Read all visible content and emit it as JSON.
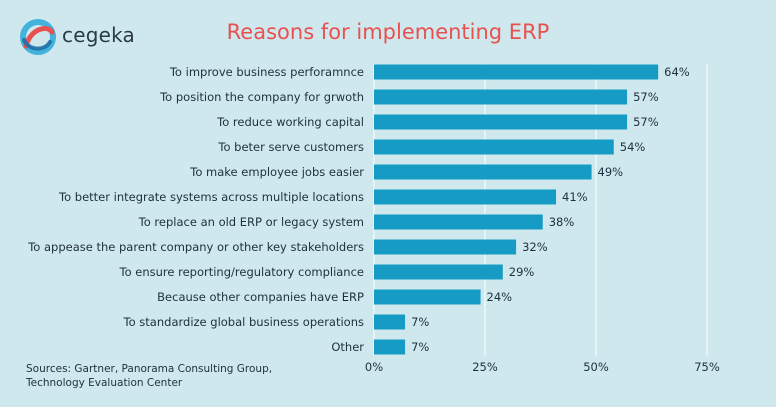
{
  "brand": {
    "name": "cegeka"
  },
  "colors": {
    "bar": "#169bc4",
    "grid": "#ffffff",
    "title": "#e8514f",
    "text": "#1f2f3d",
    "background": "#cfe8ee"
  },
  "sources": {
    "line1": "Sources: Gartner, Panorama Consulting Group,",
    "line2": "Technology Evaluation Center"
  },
  "chart_data": {
    "type": "bar",
    "orientation": "horizontal",
    "title": "Reasons for implementing ERP",
    "categories": [
      "To improve business perforamnce",
      "To position the company for grwoth",
      "To reduce working capital",
      "To beter serve customers",
      "To make employee jobs easier",
      "To better integrate systems across multiple locations",
      "To replace an old ERP or legacy system",
      "To appease the parent company  or other key stakeholders",
      "To ensure reporting/regulatory compliance",
      "Because other companies have ERP",
      "To standardize global business operations",
      "Other"
    ],
    "values": [
      64,
      57,
      57,
      54,
      49,
      41,
      38,
      32,
      29,
      24,
      7,
      7
    ],
    "value_labels": [
      "64%",
      "57%",
      "57%",
      "54%",
      "49%",
      "41%",
      "38%",
      "32%",
      "29%",
      "24%",
      "7%",
      "7%"
    ],
    "xticks": [
      0,
      25,
      50,
      75
    ],
    "xtick_labels": [
      "0%",
      "25%",
      "50%",
      "75%"
    ],
    "xlim": [
      0,
      75
    ],
    "grid": true
  }
}
